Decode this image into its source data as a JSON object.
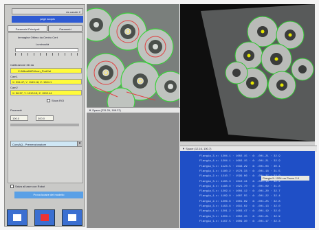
{
  "left_panel": {
    "top_bar_text": "As canale 2",
    "blue_button_label": "page acquis",
    "tabs": [
      "Parametri Principali",
      "Parametri"
    ],
    "section_title": "Immagine Ottimo da Centro Cert",
    "luminosity_label": "Luminosità",
    "calibration_label": "Calibrazione 3D da",
    "calibration_path": "C:\\MilosMW\\Vicon_PortCal",
    "cam1_label": "Cam1",
    "cam1_value": "X: 394.47; Y: 1163.18; Z: 1504.1",
    "cam2_label": "Cam2",
    "cam2_value": "X: 56.57; Y: 1313.15; Z: 1502.44",
    "checkbox_label": "Show ROI",
    "params_label": "Parametri",
    "param_values": [
      "100.0",
      "300.0"
    ],
    "dropdown_value": "ConsAQ - Premenzionatore",
    "bottom_checkbox_label": "Salva al laser con Robot",
    "bottom_button_label": "Prova lucane del modello"
  },
  "view1": {
    "status_text": "▼ Space (231.26, 188.37)"
  },
  "view2": {
    "status_text": "▼ Space (12.16, 100.7)"
  },
  "log": {
    "highlight_text": "Flangia 5: 1204 cm Pezzo 2.0",
    "lines": [
      "Flangia_3.x: 1204.1 · 1602.15 · 4: -001.21 · 32.9",
      "Flangia_4.x: 1204.1 · 1602.15 · 4: -001.21 · 32.9",
      "Flangia_5.x: 1124.5 · 1633.29 · 4: -001.04 · 30.1",
      "Flangia_1.x: 1180.2 · 1578.33 · 4: -001.18 · 31.5",
      "Flangia_2.x: 1210.7 · 1599.06 · 4: -001.27 · 33.0",
      "Flangia_3.x: 1195.3 · 1610.44 · 4: -001.15 · 32.2",
      "Flangia_4.x: 1188.9 · 1621.70 · 4: -001.09 · 31.8",
      "Flangia_5.x: 1202.4 · 1604.12 · 4: -001.20 · 32.7",
      "Flangia_1.x: 1199.0 · 1607.55 · 4: -001.22 · 32.4",
      "Flangia_2.x: 1206.6 · 1601.89 · 4: -001.25 · 32.8",
      "Flangia_3.x: 1193.8 · 1615.02 · 4: -001.13 · 32.0",
      "Flangia_4.x: 1201.2 · 1603.47 · 4: -001.19 · 32.6",
      "Flangia_5.x: 1204.1 · 1602.15 · 4: -001.21 · 32.9",
      "Flangia_1.x: 1197.5 · 1609.30 · 4: -001.17 · 32.3"
    ]
  },
  "colors": {
    "log_bg": "#1f4fc6",
    "accent_yellow": "#fffb3a",
    "detect_green": "#3bd13b",
    "detect_red": "#e04040"
  }
}
